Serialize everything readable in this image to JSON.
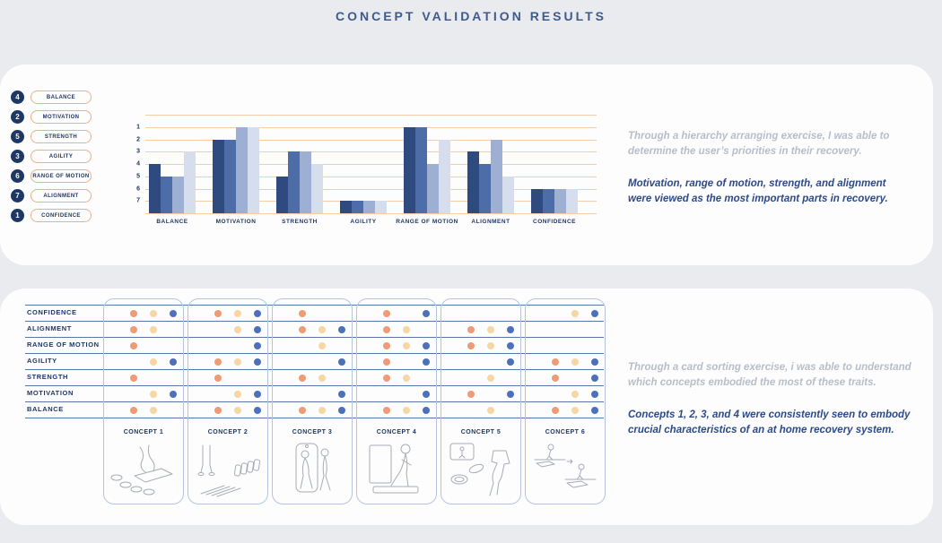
{
  "title": "CONCEPT VALIDATION RESULTS",
  "top_panel": {
    "priorities": [
      {
        "rank": "4",
        "label": "BALANCE"
      },
      {
        "rank": "2",
        "label": "MOTIVATION"
      },
      {
        "rank": "5",
        "label": "STRENGTH"
      },
      {
        "rank": "3",
        "label": "AGILITY"
      },
      {
        "rank": "6",
        "label": "RANGE OF MOTION"
      },
      {
        "rank": "7",
        "label": "ALIGNMENT"
      },
      {
        "rank": "1",
        "label": "CONFIDENCE"
      }
    ],
    "note_muted": "Through a hierarchy arranging exercise, I was able to determine the user’s priorities in their recovery.",
    "note_strong": "Motivation, range of motion, strength, and alignment were viewed as the most important parts in recovery."
  },
  "chart_data": {
    "type": "bar",
    "title": "",
    "categories": [
      "BALANCE",
      "MOTIVATION",
      "STRENGTH",
      "AGILITY",
      "RANGE OF MOTION",
      "ALIGNMENT",
      "CONFIDENCE"
    ],
    "series": [
      {
        "name": "series-1",
        "values": [
          4,
          2,
          5,
          7,
          1,
          3,
          6
        ]
      },
      {
        "name": "series-2",
        "values": [
          5,
          2,
          3,
          7,
          1,
          4,
          6
        ]
      },
      {
        "name": "series-3",
        "values": [
          5,
          1,
          3,
          7,
          4,
          2,
          6
        ]
      },
      {
        "name": "series-4",
        "values": [
          3,
          1,
          4,
          7,
          2,
          5,
          6
        ]
      }
    ],
    "yticks": [
      1,
      2,
      3,
      4,
      5,
      6,
      7
    ],
    "value_meaning": "rank where 1 = highest priority; bar height = 8 - rank units",
    "ylim": [
      1,
      7
    ],
    "grid": true,
    "legend_position": "none",
    "colors": [
      "#2f4a7e",
      "#4d6da8",
      "#9db0d4",
      "#d6dded"
    ],
    "gridline_color": "#f5cdab"
  },
  "bottom_panel": {
    "concepts": [
      "CONCEPT 1",
      "CONCEPT 2",
      "CONCEPT 3",
      "CONCEPT 4",
      "CONCEPT 5",
      "CONCEPT 6"
    ],
    "dot_colors": {
      "orange": "#ef9c76",
      "tan": "#f6d7a3",
      "blue": "#4d70bd"
    },
    "matrix": [
      {
        "trait": "CONFIDENCE",
        "cells": [
          [
            "orange",
            "tan",
            "blue"
          ],
          [
            "orange",
            "tan",
            "blue"
          ],
          [
            "orange"
          ],
          [
            "orange",
            "blue"
          ],
          [],
          [
            "tan",
            "blue"
          ]
        ]
      },
      {
        "trait": "ALIGNMENT",
        "cells": [
          [
            "orange",
            "tan"
          ],
          [
            "tan",
            "blue"
          ],
          [
            "orange",
            "tan",
            "blue"
          ],
          [
            "orange",
            "tan"
          ],
          [
            "orange",
            "tan",
            "blue"
          ],
          []
        ]
      },
      {
        "trait": "RANGE OF MOTION",
        "cells": [
          [
            "orange"
          ],
          [
            "blue"
          ],
          [
            "tan"
          ],
          [
            "orange",
            "tan",
            "blue"
          ],
          [
            "orange",
            "tan",
            "blue"
          ],
          []
        ]
      },
      {
        "trait": "AGILITY",
        "cells": [
          [
            "tan",
            "blue"
          ],
          [
            "orange",
            "tan",
            "blue"
          ],
          [
            "blue"
          ],
          [
            "orange",
            "blue"
          ],
          [
            "blue"
          ],
          [
            "orange",
            "tan",
            "blue"
          ]
        ]
      },
      {
        "trait": "STRENGTH",
        "cells": [
          [
            "orange"
          ],
          [
            "orange"
          ],
          [
            "orange",
            "tan"
          ],
          [
            "orange",
            "tan"
          ],
          [
            "tan"
          ],
          [
            "orange",
            "blue"
          ]
        ]
      },
      {
        "trait": "MOTIVATION",
        "cells": [
          [
            "tan",
            "blue"
          ],
          [
            "tan",
            "blue"
          ],
          [
            "blue"
          ],
          [
            "blue"
          ],
          [
            "orange",
            "blue"
          ],
          [
            "tan",
            "blue"
          ]
        ]
      },
      {
        "trait": "BALANCE",
        "cells": [
          [
            "orange",
            "tan"
          ],
          [
            "orange",
            "tan",
            "blue"
          ],
          [
            "orange",
            "tan",
            "blue"
          ],
          [
            "orange",
            "tan",
            "blue"
          ],
          [
            "tan"
          ],
          [
            "orange",
            "tan",
            "blue"
          ]
        ]
      }
    ],
    "note_muted": "Through a card sorting exercise, i was able to understand which concepts embodied the most of these traits.",
    "note_strong": "Concepts 1, 2, 3, and 4 were consistently seen to embody crucial characteristics of an at home recovery system."
  }
}
